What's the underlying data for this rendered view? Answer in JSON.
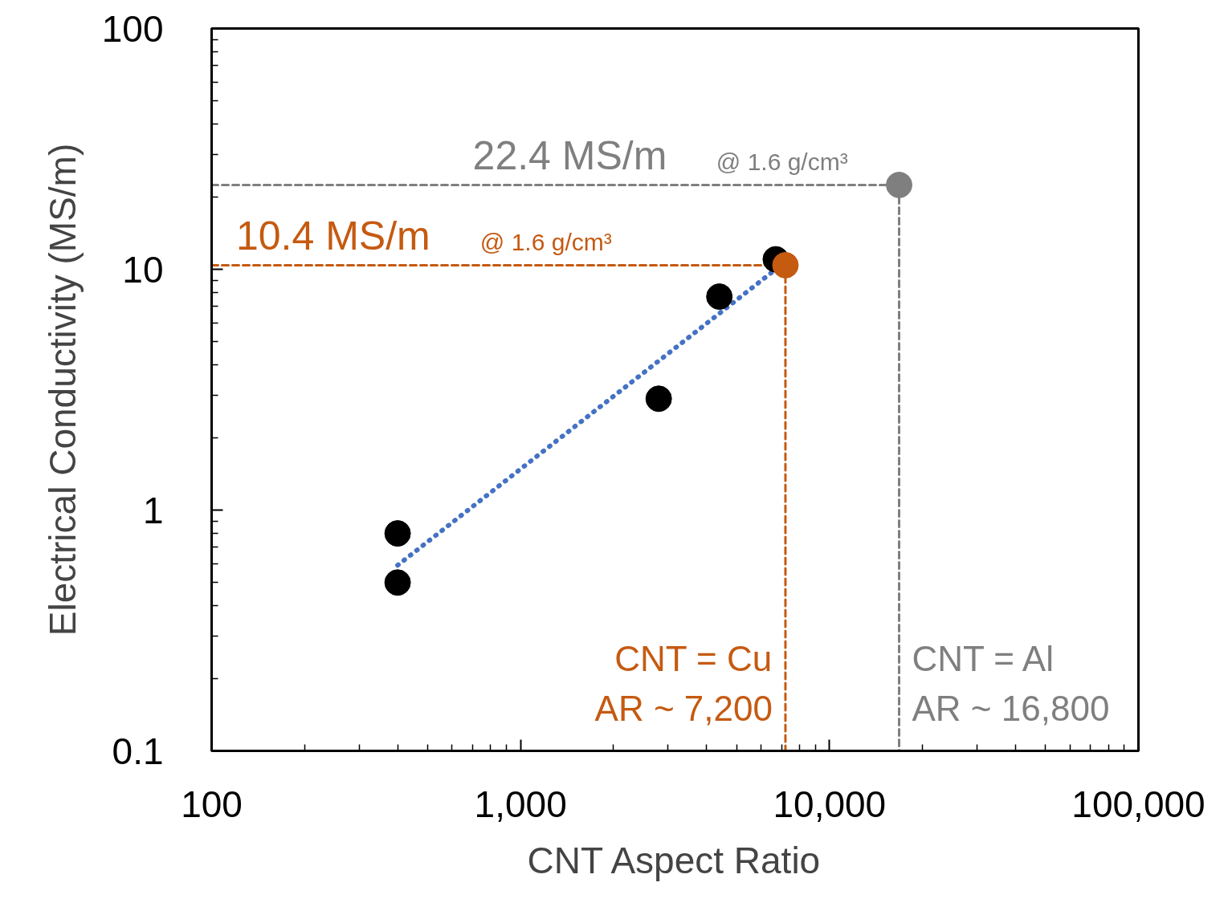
{
  "chart_data": {
    "type": "scatter",
    "xlabel": "CNT Aspect Ratio",
    "ylabel": "Electrical Conductivity (MS/m)",
    "log": "xy",
    "grid": false,
    "marker": "circle",
    "xlim": [
      100,
      100000
    ],
    "ylim": [
      0.1,
      100
    ],
    "xticks": [
      {
        "value": 100,
        "label": "100"
      },
      {
        "value": 1000,
        "label": "1,000"
      },
      {
        "value": 10000,
        "label": "10,000"
      },
      {
        "value": 100000,
        "label": "100,000"
      }
    ],
    "yticks": [
      0.1,
      1,
      10,
      100
    ],
    "series": [
      {
        "type": "line",
        "line_style": "dotted",
        "marker": "none",
        "color": "#4472c4",
        "x": [
          400,
          6700
        ],
        "values": [
          0.59,
          10
        ]
      },
      {
        "type": "line",
        "line_style": "dashed",
        "marker": "none",
        "color": "#7f7f7f",
        "x": [
          100,
          16800,
          16800
        ],
        "values": [
          22.4,
          22.4,
          0.1
        ]
      },
      {
        "type": "line",
        "line_style": "dashed",
        "marker": "none",
        "color": "#c55a11",
        "x": [
          100,
          7200,
          7200
        ],
        "values": [
          10.4,
          10.4,
          0.1
        ]
      },
      {
        "color": "#000000",
        "x": [
          400,
          400,
          2800,
          4400,
          6700
        ],
        "values": [
          0.8,
          0.5,
          2.9,
          7.7,
          11
        ]
      },
      {
        "color": "#c55a11",
        "x": [
          7200
        ],
        "values": [
          10.4
        ]
      },
      {
        "color": "#7f7f7f",
        "x": [
          16800
        ],
        "values": [
          22.4
        ]
      }
    ],
    "annotations": [
      {
        "text": "22.4 MS/m",
        "x": 700,
        "y": 22.4
      },
      {
        "text": "@ 1.6 g/cm³",
        "x": 4300,
        "y": 22.4
      },
      {
        "text": "10.4 MS/m",
        "x": 120,
        "y": 10.4
      },
      {
        "text": "@ 1.6 g/cm³",
        "x": 740,
        "y": 10.4
      },
      {
        "text": "CNT = Cu",
        "x": 7200,
        "y": 0.1
      },
      {
        "text": "AR ~ 7,200",
        "x": 7200,
        "y": 0.1
      },
      {
        "text": "CNT = Al",
        "x": 16800,
        "y": 0.1
      },
      {
        "text": "AR ~ 16,800",
        "x": 16800,
        "y": 0.1
      }
    ]
  }
}
